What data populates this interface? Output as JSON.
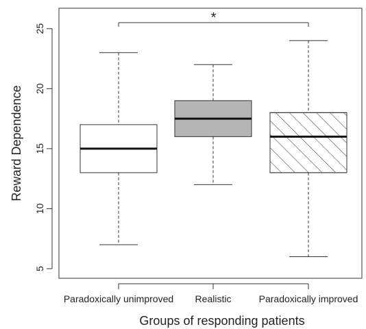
{
  "chart_data": {
    "type": "box",
    "xlabel": "Groups of responding patients",
    "ylabel": "Reward Dependence",
    "ylim": [
      4.2,
      26.7
    ],
    "yticks": [
      5,
      10,
      15,
      20,
      25
    ],
    "grid": false,
    "groups": [
      {
        "label": "Paradoxically unimproved",
        "min": 7,
        "q1": 13,
        "median": 15,
        "q3": 17,
        "max": 23,
        "fill": "#ffffff",
        "hatch": false
      },
      {
        "label": "Realistic",
        "min": 12,
        "q1": 16,
        "median": 17.5,
        "q3": 19,
        "max": 22,
        "fill": "#b5b5b5",
        "hatch": false
      },
      {
        "label": "Paradoxically improved",
        "min": 6,
        "q1": 13,
        "median": 16,
        "q3": 18,
        "max": 24,
        "fill": "#ffffff",
        "hatch": true
      }
    ],
    "significance": {
      "from": 0,
      "to": 2,
      "y": 25.5,
      "symbol": "*"
    }
  }
}
